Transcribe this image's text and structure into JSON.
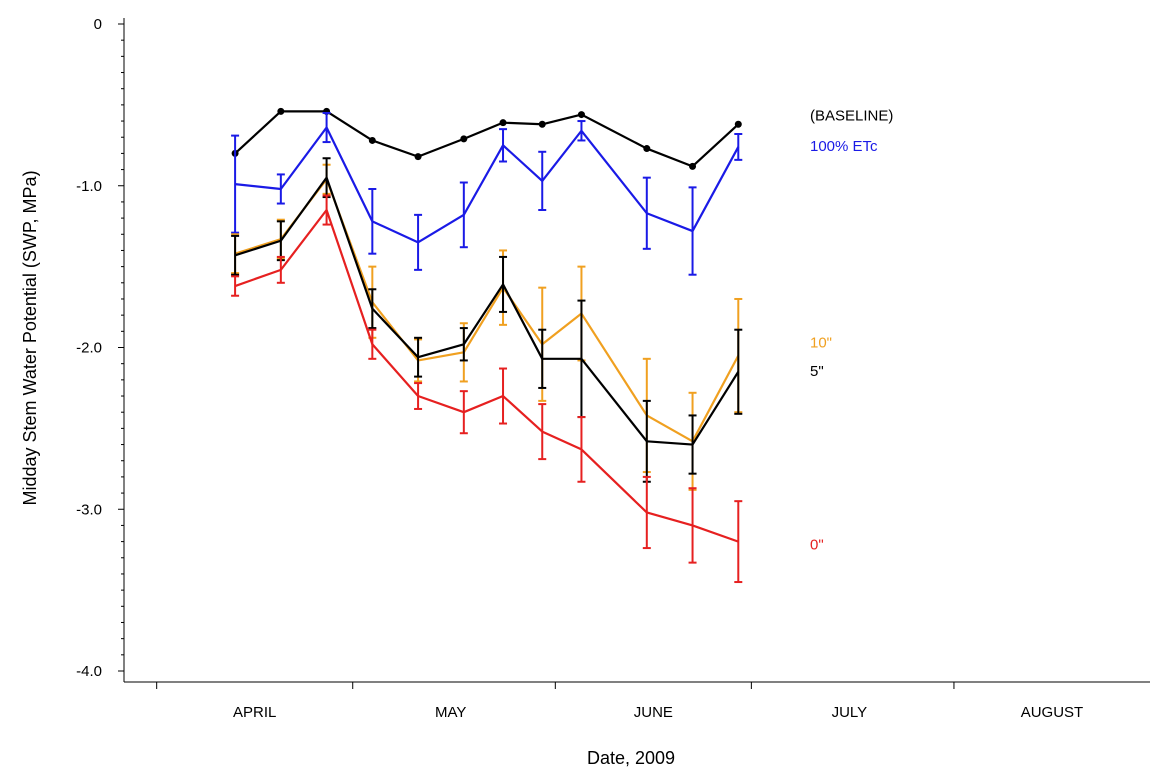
{
  "chart_data": {
    "type": "line",
    "title": "",
    "xlabel": "Date, 2009",
    "ylabel": "Midday Stem Water Potential (SWP, MPa)",
    "ylim": [
      -4.0,
      0
    ],
    "y_ticks": [
      {
        "value": 0,
        "label": "0"
      },
      {
        "value": -1.0,
        "label": "-1.0"
      },
      {
        "value": -2.0,
        "label": "-2.0"
      },
      {
        "value": -3.0,
        "label": "-3.0"
      },
      {
        "value": -4.0,
        "label": "-4.0"
      }
    ],
    "xlim": [
      "2009-03-27",
      "2009-08-31"
    ],
    "x_month_boundaries": [
      "2009-04-01",
      "2009-05-01",
      "2009-06-01",
      "2009-07-01",
      "2009-08-01"
    ],
    "x_month_labels": [
      "APRIL",
      "MAY",
      "JUNE",
      "JULY",
      "AUGUST"
    ],
    "grid": false,
    "legend": "direct labels at right end of each series",
    "x": [
      "2009-04-13",
      "2009-04-20",
      "2009-04-27",
      "2009-05-04",
      "2009-05-11",
      "2009-05-18",
      "2009-05-24",
      "2009-05-30",
      "2009-06-05",
      "2009-06-15",
      "2009-06-22",
      "2009-06-29"
    ],
    "series": [
      {
        "name": "(BASELINE)",
        "color": "#000000",
        "markers": true,
        "values": [
          -0.8,
          -0.54,
          -0.54,
          -0.72,
          -0.82,
          -0.71,
          -0.61,
          -0.62,
          -0.56,
          -0.77,
          -0.88,
          -0.62
        ],
        "errors": [
          0,
          0,
          0,
          0,
          0,
          0,
          0,
          0,
          0,
          0,
          0,
          0
        ]
      },
      {
        "name": "100% ETc",
        "color": "#1a1ae6",
        "markers": false,
        "values": [
          -0.99,
          -1.02,
          -0.64,
          -1.22,
          -1.35,
          -1.18,
          -0.75,
          -0.97,
          -0.66,
          -1.17,
          -1.28,
          -0.76
        ],
        "errors": [
          0.3,
          0.09,
          0.09,
          0.2,
          0.17,
          0.2,
          0.1,
          0.18,
          0.06,
          0.22,
          0.27,
          0.08
        ]
      },
      {
        "name": "10\"",
        "color": "#f0a020",
        "markers": false,
        "values": [
          -1.42,
          -1.33,
          -0.96,
          -1.72,
          -2.08,
          -2.03,
          -1.63,
          -1.98,
          -1.79,
          -2.42,
          -2.58,
          -2.05
        ],
        "errors": [
          0.12,
          0.12,
          0.09,
          0.22,
          0.13,
          0.18,
          0.23,
          0.35,
          0.29,
          0.35,
          0.3,
          0.35
        ]
      },
      {
        "name": "5\"",
        "color": "#000000",
        "markers": false,
        "values": [
          -1.43,
          -1.34,
          -0.95,
          -1.76,
          -2.06,
          -1.98,
          -1.61,
          -2.07,
          -2.07,
          -2.58,
          -2.6,
          -2.15
        ],
        "errors": [
          0.12,
          0.12,
          0.12,
          0.12,
          0.12,
          0.1,
          0.17,
          0.18,
          0.36,
          0.25,
          0.18,
          0.26
        ]
      },
      {
        "name": "0\"",
        "color": "#e62020",
        "markers": false,
        "values": [
          -1.62,
          -1.52,
          -1.15,
          -1.98,
          -2.3,
          -2.4,
          -2.3,
          -2.52,
          -2.63,
          -3.02,
          -3.1,
          -3.2
        ],
        "errors": [
          0.06,
          0.08,
          0.09,
          0.09,
          0.08,
          0.13,
          0.17,
          0.17,
          0.2,
          0.22,
          0.23,
          0.25
        ]
      }
    ]
  }
}
